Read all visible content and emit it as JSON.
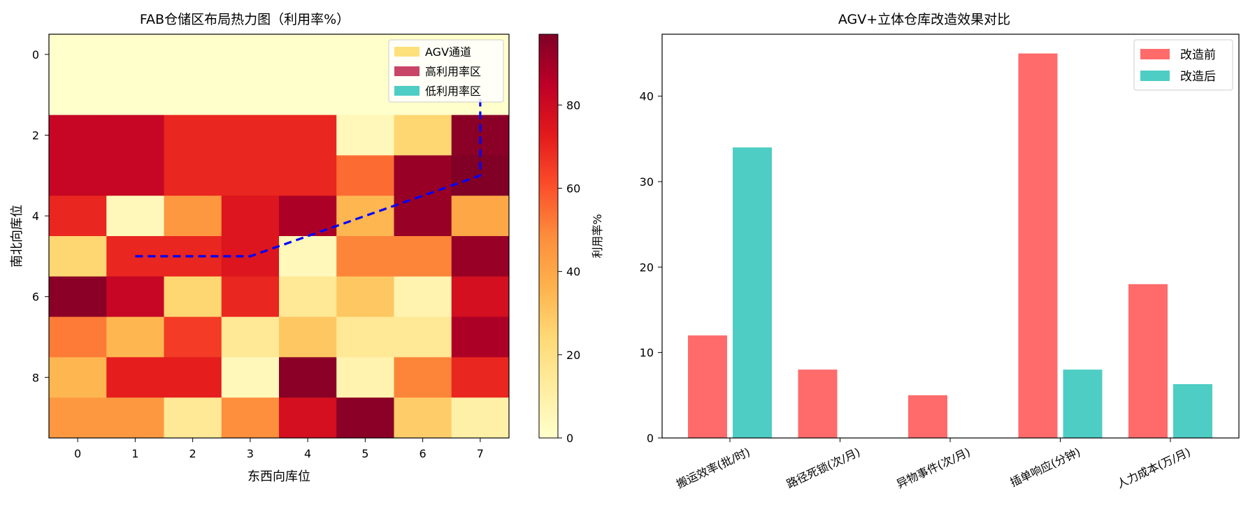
{
  "colors": {
    "before": "#ff6b6b",
    "after": "#4ecdc4",
    "agv_legend": "#fde07a",
    "high_legend": "#c94567",
    "low_legend": "#4ecdc4",
    "path": "#0000ff",
    "colormap": [
      "#ffffcc",
      "#ffeda0",
      "#fed976",
      "#feb24c",
      "#fd8d3c",
      "#fc4e2a",
      "#e31a1c",
      "#bd0026",
      "#800026"
    ]
  },
  "chart_data": [
    {
      "type": "heatmap",
      "title": "FAB仓储区布局热力图（利用率%）",
      "xlabel": "东西向库位",
      "ylabel": "南北向库位",
      "x_ticks": [
        "0",
        "1",
        "2",
        "3",
        "4",
        "5",
        "6",
        "7"
      ],
      "y_ticks": [
        "0",
        "2",
        "4",
        "6",
        "8"
      ],
      "colorbar": {
        "label": "利用率%",
        "range": [
          0,
          97
        ],
        "ticks": [
          "0",
          "20",
          "40",
          "60",
          "80"
        ]
      },
      "values": [
        [
          0,
          0,
          0,
          0,
          0,
          0,
          0,
          0
        ],
        [
          0,
          0,
          0,
          0,
          0,
          0,
          0,
          0
        ],
        [
          82,
          82,
          70,
          70,
          70,
          5,
          25,
          95
        ],
        [
          82,
          82,
          70,
          70,
          70,
          55,
          92,
          97
        ],
        [
          70,
          5,
          45,
          75,
          88,
          35,
          92,
          40
        ],
        [
          25,
          70,
          70,
          75,
          5,
          50,
          50,
          92
        ],
        [
          95,
          82,
          25,
          70,
          15,
          30,
          8,
          78
        ],
        [
          52,
          35,
          65,
          15,
          30,
          15,
          15,
          88
        ],
        [
          35,
          72,
          72,
          5,
          95,
          8,
          50,
          70
        ],
        [
          45,
          45,
          15,
          48,
          78,
          95,
          28,
          10
        ]
      ],
      "agv_path": {
        "x": [
          1,
          3,
          7,
          7
        ],
        "y": [
          5,
          5,
          3,
          1.1
        ]
      },
      "legend": [
        "AGV通道",
        "高利用率区",
        "低利用率区"
      ],
      "legend_position": "top-right"
    },
    {
      "type": "bar",
      "title": "AGV+立体仓库改造效果对比",
      "categories": [
        "搬运效率(批/时)",
        "路径死锁(次/月)",
        "异物事件(次/月)",
        "插单响应(分钟)",
        "人力成本(万/月)"
      ],
      "series": [
        {
          "name": "改造前",
          "values": [
            12,
            8,
            5,
            45,
            18
          ]
        },
        {
          "name": "改造后",
          "values": [
            34,
            0,
            0,
            8,
            6.3
          ]
        }
      ],
      "ylim": [
        0,
        47.25
      ],
      "y_ticks": [
        "0",
        "10",
        "20",
        "30",
        "40"
      ],
      "legend_position": "top-right"
    }
  ]
}
